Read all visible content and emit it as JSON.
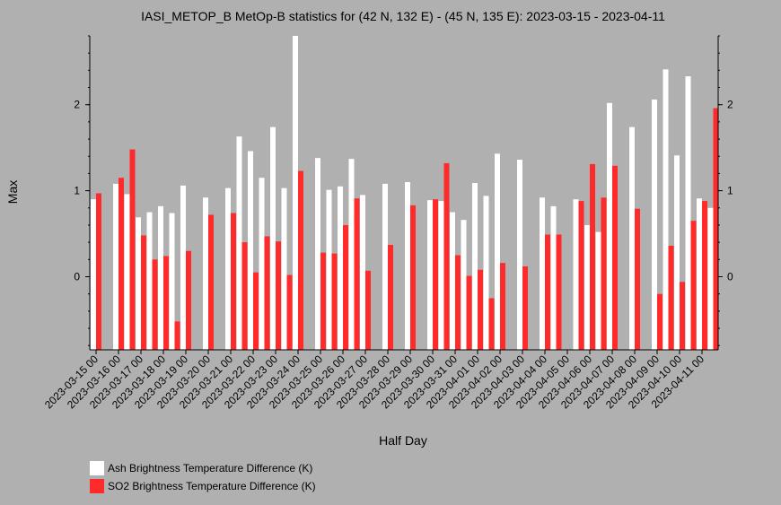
{
  "chart_data": {
    "type": "bar",
    "title": "IASI_METOP_B MetOp-B statistics for (42 N, 132 E) - (45 N, 135 E): 2023-03-15 - 2023-04-11",
    "xlabel": "Half Day",
    "ylabel": "Max",
    "ylim": [
      -0.85,
      2.8
    ],
    "yticks": [
      0,
      1,
      2
    ],
    "xtick_labels": [
      "2023-03-15 00",
      "2023-03-16 00",
      "2023-03-17 00",
      "2023-03-18 00",
      "2023-03-19 00",
      "2023-03-20 00",
      "2023-03-21 00",
      "2023-03-22 00",
      "2023-03-23 00",
      "2023-03-24 00",
      "2023-03-25 00",
      "2023-03-26 00",
      "2023-03-27 00",
      "2023-03-28 00",
      "2023-03-29 00",
      "2023-03-30 00",
      "2023-03-31 00",
      "2023-04-01 00",
      "2023-04-02 00",
      "2023-04-03 00",
      "2023-04-04 00",
      "2023-04-05 00",
      "2023-04-06 00",
      "2023-04-07 00",
      "2023-04-08 00",
      "2023-04-09 00",
      "2023-04-10 00",
      "2023-04-11 00"
    ],
    "legend_position": "bottom-left",
    "series": [
      {
        "name": "Ash Brightness Temperature Difference (K)",
        "color": "#ffffff",
        "values": [
          0.9,
          null,
          1.08,
          0.96,
          0.69,
          0.75,
          0.82,
          0.74,
          1.06,
          null,
          0.92,
          null,
          1.03,
          1.63,
          1.46,
          1.15,
          1.74,
          1.03,
          2.8,
          null,
          1.38,
          1.01,
          1.05,
          1.37,
          0.95,
          null,
          1.08,
          null,
          1.1,
          null,
          0.89,
          0.88,
          0.75,
          0.66,
          1.09,
          0.94,
          1.43,
          null,
          1.36,
          null,
          0.92,
          0.82,
          null,
          0.9,
          0.6,
          0.52,
          2.02,
          null,
          1.74,
          null,
          2.06,
          2.41,
          1.41,
          2.33,
          0.91,
          0.8
        ]
      },
      {
        "name": "SO2 Brightness Temperature Difference (K)",
        "color": "#ff2a2a",
        "values": [
          0.97,
          null,
          1.15,
          1.48,
          0.48,
          0.2,
          0.24,
          -0.52,
          0.3,
          null,
          0.72,
          null,
          0.74,
          0.4,
          0.05,
          0.47,
          0.41,
          0.02,
          1.23,
          null,
          0.28,
          0.27,
          0.6,
          0.91,
          0.07,
          null,
          0.37,
          null,
          0.83,
          null,
          0.9,
          1.32,
          0.25,
          0.01,
          0.08,
          -0.25,
          0.16,
          null,
          0.12,
          null,
          0.49,
          0.49,
          null,
          0.88,
          1.31,
          0.92,
          1.29,
          null,
          0.79,
          null,
          -0.2,
          0.36,
          -0.06,
          0.65,
          0.88,
          1.96
        ]
      }
    ]
  }
}
